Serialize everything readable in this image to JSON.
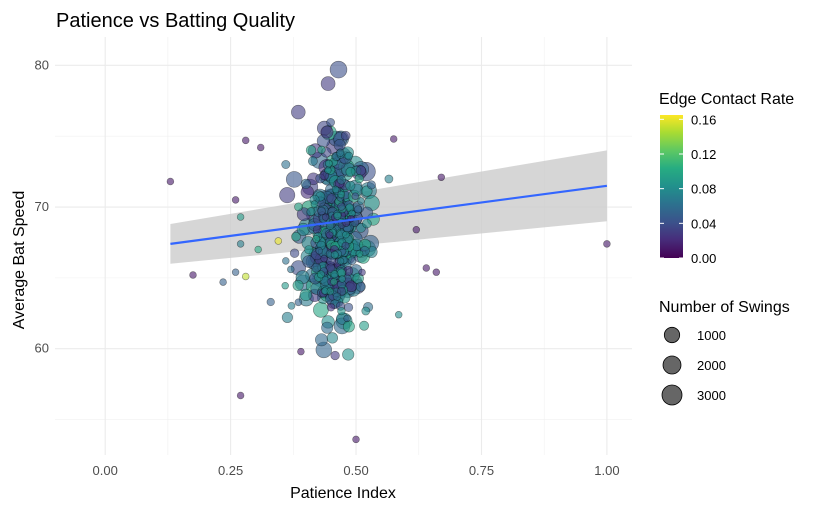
{
  "chart_data": {
    "type": "scatter",
    "title": "Patience vs Batting Quality",
    "xlabel": "Patience Index",
    "ylabel": "Average Bat Speed",
    "xlim": [
      -0.1,
      1.05
    ],
    "ylim": [
      52.5,
      82
    ],
    "x_ticks": [
      0.0,
      0.25,
      0.5,
      0.75,
      1.0
    ],
    "x_tick_labels": [
      "0.00",
      "0.25",
      "0.50",
      "0.75",
      "1.00"
    ],
    "y_ticks": [
      60,
      70,
      80
    ],
    "y_tick_labels": [
      "60",
      "70",
      "80"
    ],
    "grid": true,
    "trend_line": {
      "method": "linear",
      "x": [
        0.13,
        1.0
      ],
      "y": [
        67.4,
        71.5
      ],
      "ci_lower": [
        66.0,
        69.0
      ],
      "ci_upper": [
        68.8,
        74.0
      ],
      "color": "#3366ff",
      "ribbon_color": "#cccccc"
    },
    "color_legend": {
      "title": "Edge Contact Rate",
      "ticks": [
        "0.16",
        "0.12",
        "0.08",
        "0.04",
        "0.00"
      ],
      "min": 0.0,
      "max": 0.165
    },
    "size_legend": {
      "title": "Number of Swings",
      "entries": [
        {
          "label": "1000",
          "value": 1000
        },
        {
          "label": "2000",
          "value": 2000
        },
        {
          "label": "3000",
          "value": 3000
        }
      ]
    },
    "points_outliers": [
      {
        "x": 0.13,
        "y": 71.8,
        "c": 0.01,
        "n": 60
      },
      {
        "x": 0.28,
        "y": 74.7,
        "c": 0.01,
        "n": 60
      },
      {
        "x": 0.31,
        "y": 74.2,
        "c": 0.01,
        "n": 60
      },
      {
        "x": 0.26,
        "y": 70.5,
        "c": 0.01,
        "n": 60
      },
      {
        "x": 0.175,
        "y": 65.2,
        "c": 0.01,
        "n": 60
      },
      {
        "x": 0.235,
        "y": 64.7,
        "c": 0.05,
        "n": 60
      },
      {
        "x": 0.26,
        "y": 65.4,
        "c": 0.05,
        "n": 60
      },
      {
        "x": 0.27,
        "y": 67.4,
        "c": 0.07,
        "n": 60
      },
      {
        "x": 0.27,
        "y": 69.3,
        "c": 0.09,
        "n": 60
      },
      {
        "x": 0.28,
        "y": 65.1,
        "c": 0.15,
        "n": 60
      },
      {
        "x": 0.305,
        "y": 67.0,
        "c": 0.1,
        "n": 60
      },
      {
        "x": 0.27,
        "y": 56.7,
        "c": 0.01,
        "n": 60
      },
      {
        "x": 0.39,
        "y": 59.8,
        "c": 0.01,
        "n": 60
      },
      {
        "x": 0.5,
        "y": 53.6,
        "c": 0.01,
        "n": 60
      },
      {
        "x": 0.585,
        "y": 62.4,
        "c": 0.08,
        "n": 60
      },
      {
        "x": 0.62,
        "y": 68.4,
        "c": 0.01,
        "n": 60
      },
      {
        "x": 0.64,
        "y": 65.7,
        "c": 0.01,
        "n": 60
      },
      {
        "x": 0.66,
        "y": 65.4,
        "c": 0.01,
        "n": 60
      },
      {
        "x": 0.67,
        "y": 72.1,
        "c": 0.01,
        "n": 60
      },
      {
        "x": 0.575,
        "y": 74.8,
        "c": 0.01,
        "n": 60
      },
      {
        "x": 1.0,
        "y": 67.4,
        "c": 0.01,
        "n": 60
      },
      {
        "x": 0.345,
        "y": 67.6,
        "c": 0.16,
        "n": 60
      },
      {
        "x": 0.36,
        "y": 66.2,
        "c": 0.06,
        "n": 60
      },
      {
        "x": 0.37,
        "y": 65.6,
        "c": 0.06,
        "n": 60
      },
      {
        "x": 0.33,
        "y": 63.3,
        "c": 0.05,
        "n": 120
      },
      {
        "x": 0.385,
        "y": 76.7,
        "c": 0.03,
        "n": 1400
      },
      {
        "x": 0.465,
        "y": 79.7,
        "c": 0.04,
        "n": 2500
      },
      {
        "x": 0.52,
        "y": 72.5,
        "c": 0.04,
        "n": 3300
      },
      {
        "x": 0.36,
        "y": 73.0,
        "c": 0.06,
        "n": 200
      },
      {
        "x": 0.4,
        "y": 63.8,
        "c": 0.09,
        "n": 800
      }
    ],
    "cluster": {
      "count": 430,
      "x_center": 0.46,
      "x_spread": 0.03,
      "y_center": 68.0,
      "y_spread": 3.2,
      "edge_rate_range": [
        0.02,
        0.1
      ],
      "swings_range": [
        50,
        2400
      ]
    }
  }
}
